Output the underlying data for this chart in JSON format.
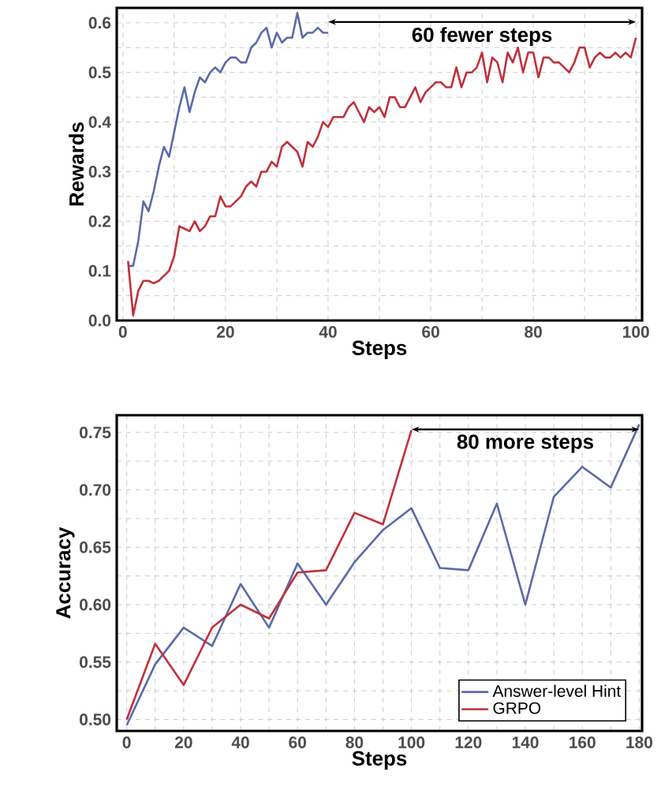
{
  "chart_data": [
    {
      "type": "line",
      "xlabel": "Steps",
      "ylabel": "Rewards",
      "xlim": [
        -1.2,
        101.2
      ],
      "ylim": [
        0,
        0.63
      ],
      "xticks": [
        0,
        20,
        40,
        60,
        80,
        100
      ],
      "yticks": [
        {
          "value": 0,
          "label": "0.0"
        },
        0.1,
        0.2,
        0.3,
        0.4,
        0.5,
        0.6
      ],
      "grid": true,
      "line_style": "solid",
      "annotations": [
        "**60 fewer steps**"
      ],
      "series": [
        {
          "color": "#5b6aa8",
          "x": [
            1,
            2,
            3,
            4,
            5,
            6,
            7,
            8,
            9,
            10,
            11,
            12,
            13,
            14,
            15,
            16,
            17,
            18,
            19,
            20,
            21,
            22,
            23,
            24,
            25,
            26,
            27,
            28,
            29,
            30,
            31,
            32,
            33,
            34,
            35,
            36,
            37,
            38,
            39,
            40
          ],
          "values": [
            0.11,
            0.11,
            0.16,
            0.24,
            0.22,
            0.26,
            0.31,
            0.35,
            0.33,
            0.38,
            0.43,
            0.47,
            0.42,
            0.46,
            0.49,
            0.48,
            0.5,
            0.51,
            0.5,
            0.52,
            0.53,
            0.53,
            0.52,
            0.52,
            0.55,
            0.56,
            0.58,
            0.59,
            0.55,
            0.58,
            0.56,
            0.57,
            0.57,
            0.62,
            0.57,
            0.58,
            0.58,
            0.59,
            0.58,
            0.58
          ]
        },
        {
          "color": "#c0303c",
          "x": [
            1,
            2,
            3,
            4,
            5,
            6,
            7,
            8,
            9,
            10,
            11,
            12,
            13,
            14,
            15,
            16,
            17,
            18,
            19,
            20,
            21,
            22,
            23,
            24,
            25,
            26,
            27,
            28,
            29,
            30,
            31,
            32,
            33,
            34,
            35,
            36,
            37,
            38,
            39,
            40,
            41,
            42,
            43,
            44,
            45,
            46,
            47,
            48,
            49,
            50,
            51,
            52,
            53,
            54,
            55,
            56,
            57,
            58,
            59,
            60,
            61,
            62,
            63,
            64,
            65,
            66,
            67,
            68,
            69,
            70,
            71,
            72,
            73,
            74,
            75,
            76,
            77,
            78,
            79,
            80,
            81,
            82,
            83,
            84,
            85,
            86,
            87,
            88,
            89,
            90,
            91,
            92,
            93,
            94,
            95,
            96,
            97,
            98,
            99,
            100
          ],
          "values": [
            0.12,
            0.01,
            0.06,
            0.08,
            0.08,
            0.075,
            0.08,
            0.09,
            0.1,
            0.13,
            0.19,
            0.185,
            0.18,
            0.2,
            0.18,
            0.19,
            0.21,
            0.21,
            0.25,
            0.23,
            0.23,
            0.24,
            0.25,
            0.27,
            0.28,
            0.27,
            0.3,
            0.3,
            0.32,
            0.31,
            0.35,
            0.36,
            0.35,
            0.34,
            0.31,
            0.36,
            0.35,
            0.37,
            0.4,
            0.39,
            0.41,
            0.41,
            0.41,
            0.43,
            0.44,
            0.42,
            0.4,
            0.43,
            0.42,
            0.43,
            0.41,
            0.45,
            0.45,
            0.43,
            0.43,
            0.45,
            0.47,
            0.44,
            0.46,
            0.47,
            0.48,
            0.48,
            0.47,
            0.47,
            0.51,
            0.47,
            0.5,
            0.5,
            0.51,
            0.54,
            0.48,
            0.53,
            0.52,
            0.48,
            0.54,
            0.52,
            0.55,
            0.5,
            0.54,
            0.54,
            0.49,
            0.53,
            0.53,
            0.52,
            0.52,
            0.51,
            0.5,
            0.52,
            0.55,
            0.55,
            0.51,
            0.53,
            0.54,
            0.53,
            0.53,
            0.54,
            0.53,
            0.54,
            0.53,
            0.57
          ]
        }
      ]
    },
    {
      "type": "line",
      "xlabel": "Steps",
      "ylabel": "Accuracy",
      "xlim": [
        -3.5,
        181
      ],
      "ylim": [
        0.49,
        0.765
      ],
      "xticks": [
        0,
        20,
        40,
        60,
        80,
        100,
        120,
        140,
        160,
        180
      ],
      "yticks": [
        {
          "value": 0.5,
          "label": "0.50"
        },
        0.55,
        {
          "value": 0.6,
          "label": "0.60"
        },
        0.65,
        {
          "value": 0.7,
          "label": "0.70"
        },
        0.75
      ],
      "grid": true,
      "line_style": "solid",
      "legend": "bottom right",
      "annotations": [
        "**80 more steps**"
      ],
      "series": [
        {
          "name": "Answer-level Hint",
          "color": "#5b6aa8",
          "x": [
            0,
            10,
            20,
            30,
            40,
            50,
            60,
            70,
            80,
            90,
            100,
            110,
            120,
            130,
            140,
            150,
            160,
            170,
            180
          ],
          "values": [
            0.495,
            0.548,
            0.58,
            0.564,
            0.618,
            0.58,
            0.636,
            0.6,
            0.637,
            0.665,
            0.684,
            0.632,
            0.63,
            0.688,
            0.6,
            0.694,
            0.72,
            0.702,
            0.757
          ]
        },
        {
          "name": "GRPO",
          "color": "#c0303c",
          "x": [
            0,
            10,
            20,
            30,
            40,
            50,
            60,
            70,
            80,
            90,
            100
          ],
          "values": [
            0.5,
            0.566,
            0.53,
            0.58,
            0.6,
            0.588,
            0.628,
            0.63,
            0.68,
            0.67,
            0.752
          ]
        }
      ]
    }
  ]
}
